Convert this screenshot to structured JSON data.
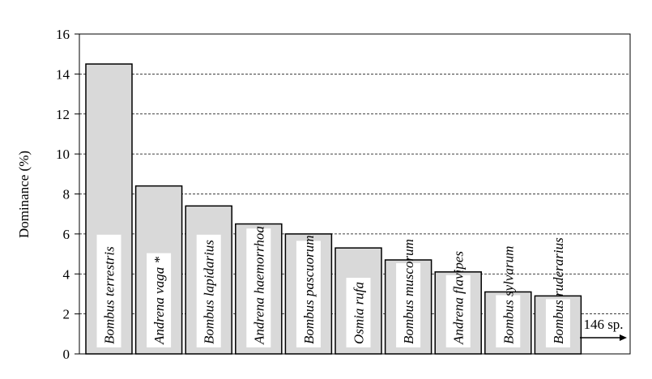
{
  "chart_data": {
    "type": "bar",
    "ylabel": "Dominance (%)",
    "ylim": [
      0,
      16
    ],
    "yticks": [
      "0",
      "2",
      "4",
      "6",
      "8",
      "10",
      "12",
      "14",
      "16"
    ],
    "grid": "horizontal dashed",
    "categories": [
      "Bombus terrestris",
      "Andrena vaga *",
      "Bombus lapidarius",
      "Andrena haemorrhoa",
      "Bombus pascuorum",
      "Osmia rufa",
      "Bombus muscorum",
      "Andrena flavipes",
      "Bombus sylvarum",
      "Bombus ruderarius"
    ],
    "values": [
      14.5,
      8.4,
      7.4,
      6.5,
      6.0,
      5.3,
      4.7,
      4.1,
      3.1,
      2.9
    ],
    "annotation": "146 sp.",
    "colors": {
      "bar_fill": "#d9d9d9",
      "bar_stroke": "#000000",
      "label_box": "#ffffff"
    }
  }
}
